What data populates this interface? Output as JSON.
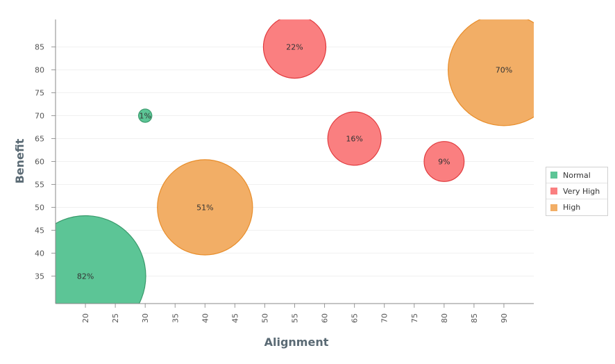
{
  "chart_data": {
    "type": "scatter",
    "title": "",
    "xlabel": "Alignment",
    "ylabel": "Benefit",
    "xlim": [
      15,
      95
    ],
    "ylim": [
      29,
      91
    ],
    "x_ticks": [
      20,
      25,
      30,
      35,
      40,
      45,
      50,
      55,
      60,
      65,
      70,
      75,
      80,
      85,
      90
    ],
    "y_ticks": [
      35,
      40,
      45,
      50,
      55,
      60,
      65,
      70,
      75,
      80,
      85
    ],
    "grid": true,
    "legend_position": "right",
    "series": [
      {
        "name": "Normal",
        "color": "#5cc596",
        "stroke": "#3a9a6c",
        "points": [
          {
            "x": 20,
            "y": 35,
            "size": 82,
            "label": "82%"
          },
          {
            "x": 30,
            "y": 70,
            "size": 1,
            "label": "1%"
          }
        ]
      },
      {
        "name": "Very High",
        "color": "#fa7f80",
        "stroke": "#e0393c",
        "points": [
          {
            "x": 55,
            "y": 85,
            "size": 22,
            "label": "22%"
          },
          {
            "x": 65,
            "y": 65,
            "size": 16,
            "label": "16%"
          },
          {
            "x": 80,
            "y": 60,
            "size": 9,
            "label": "9%"
          }
        ]
      },
      {
        "name": "High",
        "color": "#f2ae66",
        "stroke": "#e88d2a",
        "points": [
          {
            "x": 40,
            "y": 50,
            "size": 51,
            "label": "51%"
          },
          {
            "x": 90,
            "y": 80,
            "size": 70,
            "label": "70%"
          }
        ]
      }
    ]
  }
}
